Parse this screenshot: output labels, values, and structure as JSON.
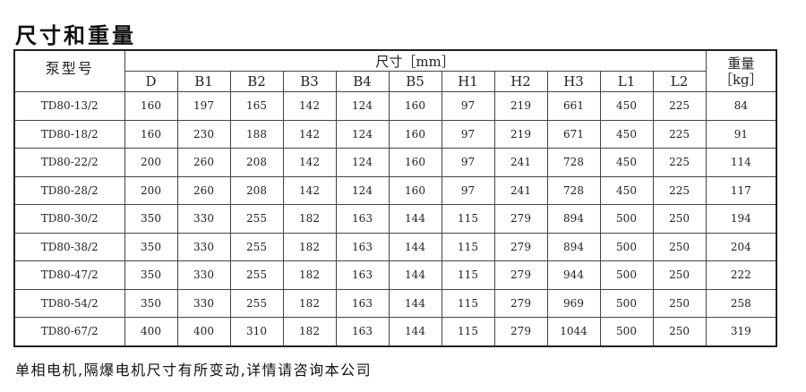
{
  "title": "尺寸和重量",
  "table": {
    "model_header": "泵型号",
    "dims_header": "尺寸［mm］",
    "weight_header": "重量",
    "weight_unit": "［kg］",
    "columns": [
      "D",
      "B1",
      "B2",
      "B3",
      "B4",
      "B5",
      "H1",
      "H2",
      "H3",
      "L1",
      "L2"
    ],
    "rows": [
      {
        "model": "TD80-13/2",
        "values": [
          "160",
          "197",
          "165",
          "142",
          "124",
          "160",
          "97",
          "219",
          "661",
          "450",
          "225"
        ],
        "weight": "84"
      },
      {
        "model": "TD80-18/2",
        "values": [
          "160",
          "230",
          "188",
          "142",
          "124",
          "160",
          "97",
          "219",
          "671",
          "450",
          "225"
        ],
        "weight": "91"
      },
      {
        "model": "TD80-22/2",
        "values": [
          "200",
          "260",
          "208",
          "142",
          "124",
          "160",
          "97",
          "241",
          "728",
          "450",
          "225"
        ],
        "weight": "114"
      },
      {
        "model": "TD80-28/2",
        "values": [
          "200",
          "260",
          "208",
          "142",
          "124",
          "160",
          "97",
          "241",
          "728",
          "450",
          "225"
        ],
        "weight": "117"
      },
      {
        "model": "TD80-30/2",
        "values": [
          "350",
          "330",
          "255",
          "182",
          "163",
          "144",
          "115",
          "279",
          "894",
          "500",
          "250"
        ],
        "weight": "194"
      },
      {
        "model": "TD80-38/2",
        "values": [
          "350",
          "330",
          "255",
          "182",
          "163",
          "144",
          "115",
          "279",
          "894",
          "500",
          "250"
        ],
        "weight": "204"
      },
      {
        "model": "TD80-47/2",
        "values": [
          "350",
          "330",
          "255",
          "182",
          "163",
          "144",
          "115",
          "279",
          "944",
          "500",
          "250"
        ],
        "weight": "222"
      },
      {
        "model": "TD80-54/2",
        "values": [
          "350",
          "330",
          "255",
          "182",
          "163",
          "144",
          "115",
          "279",
          "969",
          "500",
          "250"
        ],
        "weight": "258"
      },
      {
        "model": "TD80-67/2",
        "values": [
          "400",
          "400",
          "310",
          "182",
          "163",
          "144",
          "115",
          "279",
          "1044",
          "500",
          "250"
        ],
        "weight": "319"
      }
    ]
  },
  "footer": "单相电机,隔爆电机尺寸有所变动,详情请咨询本公司"
}
